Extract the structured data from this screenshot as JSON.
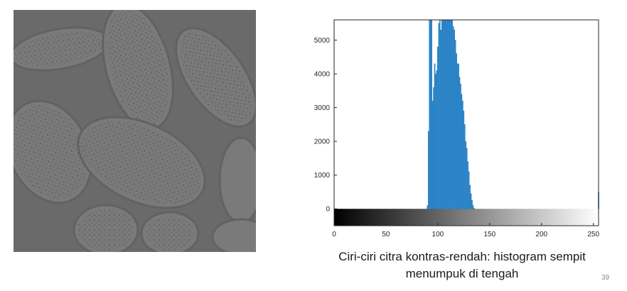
{
  "chart_data": {
    "type": "bar",
    "title": "",
    "xlabel": "",
    "ylabel": "",
    "xlim": [
      0,
      255
    ],
    "ylim": [
      -500,
      5600
    ],
    "x_ticks": [
      0,
      50,
      100,
      150,
      200,
      250
    ],
    "y_ticks": [
      0,
      1000,
      2000,
      3000,
      4000,
      5000
    ],
    "x_tick_labels": [
      "0",
      "50",
      "100",
      "150",
      "200",
      "250"
    ],
    "y_tick_labels": [
      "0",
      "1000",
      "2000",
      "3000",
      "4000",
      "5000"
    ],
    "grid": false,
    "colorbar": "grayscale gradient black to white along x axis",
    "bar_color": "#2b8fd6",
    "x": [
      90,
      91,
      92,
      93,
      94,
      95,
      96,
      97,
      98,
      99,
      100,
      101,
      102,
      103,
      104,
      105,
      106,
      107,
      108,
      109,
      110,
      111,
      112,
      113,
      114,
      115,
      116,
      117,
      118,
      119,
      120,
      121,
      122,
      123,
      124,
      125,
      126,
      127,
      128,
      129,
      130,
      131,
      132,
      133,
      134,
      135,
      255
    ],
    "values": [
      100,
      2300,
      5600,
      5600,
      5600,
      3200,
      3600,
      4300,
      4000,
      4100,
      4800,
      5500,
      5600,
      5300,
      5600,
      5600,
      5600,
      5600,
      5600,
      5600,
      5600,
      5600,
      5600,
      5600,
      5600,
      5400,
      5300,
      5000,
      4600,
      4300,
      4300,
      3900,
      3700,
      3400,
      3200,
      2900,
      2500,
      2000,
      1800,
      1400,
      1100,
      700,
      450,
      250,
      100,
      20,
      500
    ]
  },
  "caption": {
    "line1": "Ciri-ciri citra kontras-rendah: histogram sempit",
    "line2": "menumpuk di tengah"
  },
  "page_number": "39",
  "image": {
    "description_icon": "pollen-grains-image"
  }
}
